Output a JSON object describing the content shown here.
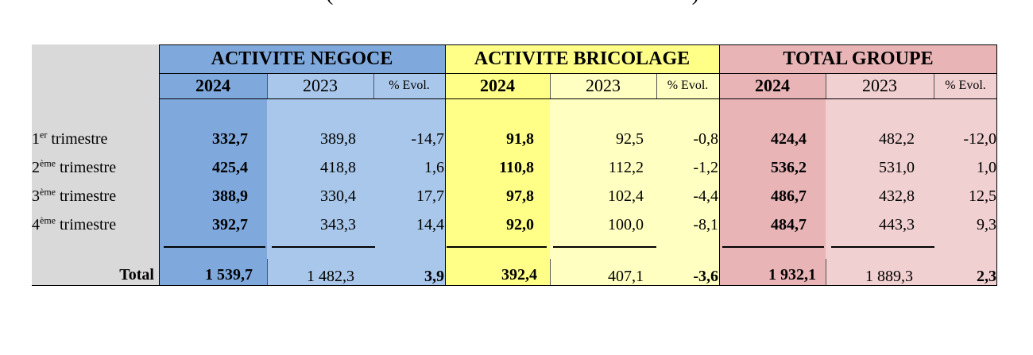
{
  "title_fragment": {
    "open": "(",
    "close": ")"
  },
  "label_column_header": "",
  "sections": [
    {
      "key": "negoce",
      "title": "ACTIVITE NEGOCE",
      "year_current": "2024",
      "year_previous": "2023",
      "evol_label": "% Evol."
    },
    {
      "key": "bricolage",
      "title": "ACTIVITE BRICOLAGE",
      "year_current": "2024",
      "year_previous": "2023",
      "evol_label": "% Evol."
    },
    {
      "key": "groupe",
      "title": "TOTAL GROUPE",
      "year_current": "2024",
      "year_previous": "2023",
      "evol_label": "% Evol."
    }
  ],
  "rows": [
    {
      "num": "1",
      "sup": "er",
      "label": "trimestre",
      "negoce": [
        "332,7",
        "389,8",
        "-14,7"
      ],
      "bricolage": [
        "91,8",
        "92,5",
        "-0,8"
      ],
      "groupe": [
        "424,4",
        "482,2",
        "-12,0"
      ]
    },
    {
      "num": "2",
      "sup": "ème",
      "label": "trimestre",
      "negoce": [
        "425,4",
        "418,8",
        "1,6"
      ],
      "bricolage": [
        "110,8",
        "112,2",
        "-1,2"
      ],
      "groupe": [
        "536,2",
        "531,0",
        "1,0"
      ]
    },
    {
      "num": "3",
      "sup": "ème",
      "label": "trimestre",
      "negoce": [
        "388,9",
        "330,4",
        "17,7"
      ],
      "bricolage": [
        "97,8",
        "102,4",
        "-4,4"
      ],
      "groupe": [
        "486,7",
        "432,8",
        "12,5"
      ]
    },
    {
      "num": "4",
      "sup": "ème",
      "label": "trimestre",
      "negoce": [
        "392,7",
        "343,3",
        "14,4"
      ],
      "bricolage": [
        "92,0",
        "100,0",
        "-8,1"
      ],
      "groupe": [
        "484,7",
        "443,3",
        "9,3"
      ]
    }
  ],
  "total": {
    "label": "Total",
    "negoce": [
      "1 539,7",
      "1 482,3",
      "3,9"
    ],
    "bricolage": [
      "392,4",
      "407,1",
      "-3,6"
    ],
    "groupe": [
      "1 932,1",
      "1 889,3",
      "2,3"
    ]
  },
  "colors": {
    "label_bg": "#d9d9d9",
    "negoce_dark": "#7fa9dd",
    "negoce_light": "#a9c7ea",
    "bricolage_dark": "#ffff88",
    "bricolage_light": "#ffffc2",
    "groupe_dark": "#e8b4b6",
    "groupe_light": "#f1d0d1"
  }
}
